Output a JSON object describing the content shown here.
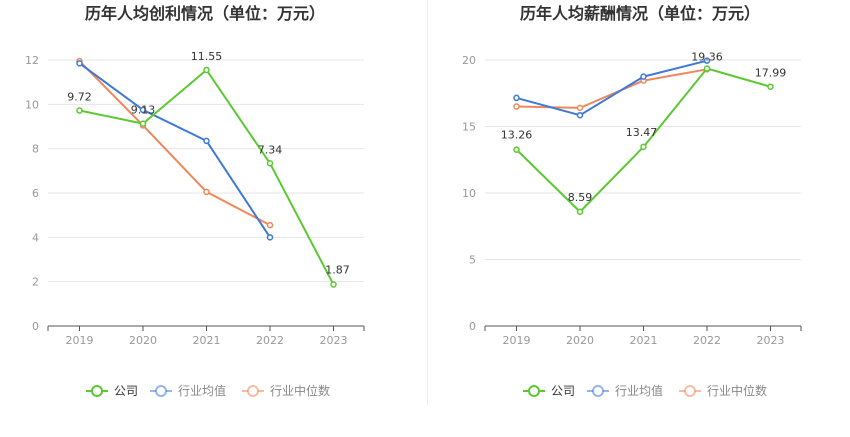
{
  "chart_data": [
    {
      "type": "line",
      "title": "历年人均创利情况（单位：万元）",
      "categories": [
        "2019",
        "2020",
        "2021",
        "2022",
        "2023"
      ],
      "ylim": [
        0,
        12
      ],
      "yticks": [
        "0",
        "2",
        "4",
        "6",
        "8",
        "10",
        "12"
      ],
      "grid": true,
      "legend_position": "bottom",
      "series": [
        {
          "name": "公司",
          "color": "#5cc832",
          "values": [
            9.72,
            9.13,
            11.55,
            7.34,
            1.87
          ],
          "labels": [
            "9.72",
            "9.13",
            "11.55",
            "7.34",
            "1.87"
          ]
        },
        {
          "name": "行业均值",
          "color": "#3f78d8",
          "values": [
            11.85,
            9.75,
            8.35,
            4.0,
            null
          ],
          "labels": []
        },
        {
          "name": "行业中位数",
          "color": "#f0875a",
          "values": [
            11.95,
            9.05,
            6.05,
            4.55,
            null
          ],
          "labels": []
        }
      ]
    },
    {
      "type": "line",
      "title": "历年人均薪酬情况（单位：万元）",
      "categories": [
        "2019",
        "2020",
        "2021",
        "2022",
        "2023"
      ],
      "ylim": [
        0,
        20
      ],
      "yticks": [
        "0",
        "5",
        "10",
        "15",
        "20"
      ],
      "grid": true,
      "legend_position": "bottom",
      "series": [
        {
          "name": "公司",
          "color": "#5cc832",
          "values": [
            13.26,
            8.59,
            13.47,
            19.36,
            17.99
          ],
          "labels": [
            "13.26",
            "8.59",
            "13.47",
            "19.36",
            "17.99"
          ]
        },
        {
          "name": "行业均值",
          "color": "#3f78d8",
          "values": [
            17.15,
            15.85,
            18.75,
            19.95,
            null
          ],
          "labels": []
        },
        {
          "name": "行业中位数",
          "color": "#f0875a",
          "values": [
            16.5,
            16.4,
            18.45,
            19.3,
            null
          ],
          "labels": []
        }
      ]
    }
  ]
}
